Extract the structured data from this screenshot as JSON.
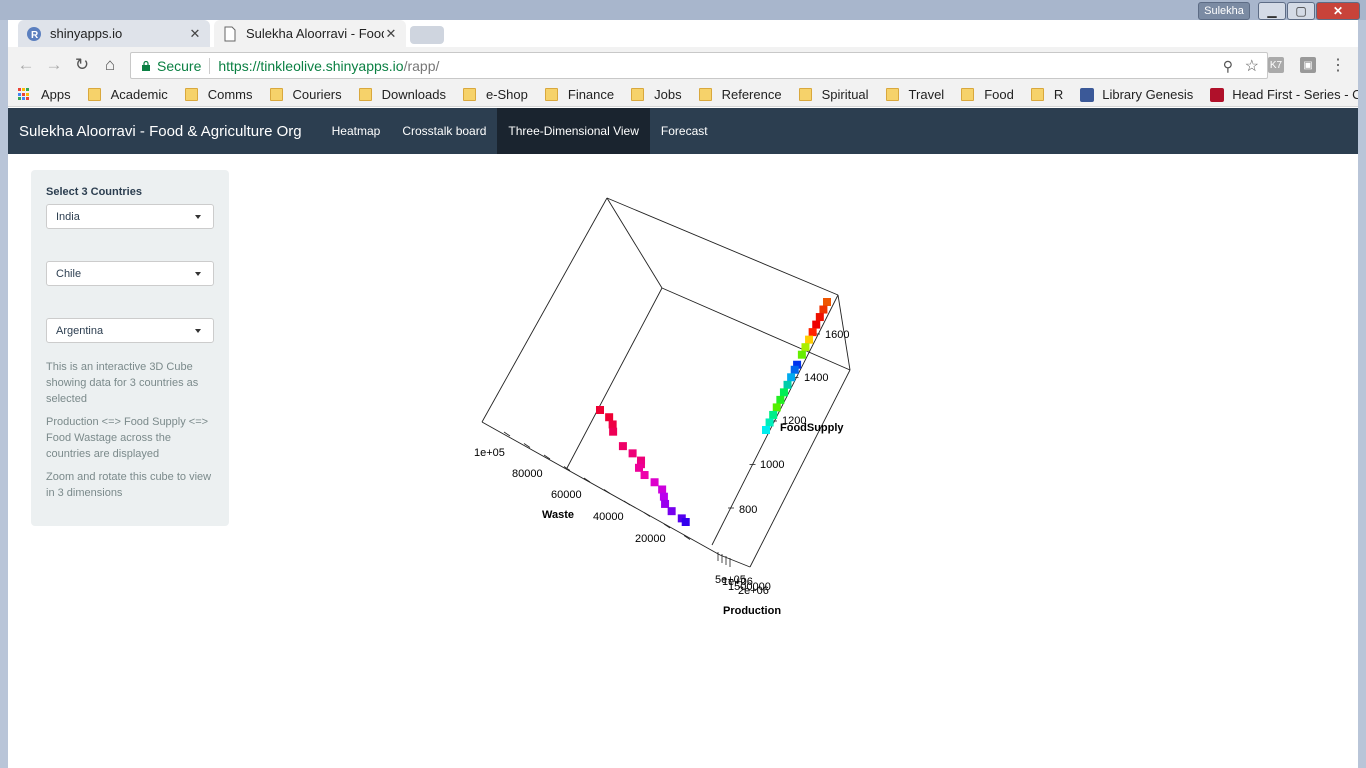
{
  "window": {
    "user": "Sulekha",
    "tabs": [
      {
        "title": "shinyapps.io"
      },
      {
        "title": "Sulekha Aloorravi - Food"
      }
    ]
  },
  "toolbar": {
    "secure_label": "Secure",
    "url_host": "https://tinkleolive.shinyapps.io",
    "url_path": "/rapp/"
  },
  "bookmarks": [
    "Apps",
    "Academic",
    "Comms",
    "Couriers",
    "Downloads",
    "e-Shop",
    "Finance",
    "Jobs",
    "Reference",
    "Spiritual",
    "Travel",
    "Food",
    "R",
    "Library Genesis",
    "Head First - Series - C"
  ],
  "navbar": {
    "brand": "Sulekha Aloorravi - Food & Agriculture Org",
    "tabs": [
      "Heatmap",
      "Crosstalk board",
      "Three-Dimensional View",
      "Forecast"
    ],
    "active_tab": "Three-Dimensional View"
  },
  "sidebar": {
    "label": "Select 3 Countries",
    "selected_countries": [
      "India",
      "Chile",
      "Argentina"
    ],
    "help": [
      "This is an interactive 3D Cube showing data for 3 countries as selected",
      "Production <=> Food Supply <=> Food Wastage across the countries are displayed",
      "Zoom and rotate this cube to view in 3 dimensions"
    ]
  },
  "colors": {
    "navbar": "#2c3e50",
    "navbar_active": "#1a242f",
    "sidebar": "#ecf0f1",
    "secure_green": "#0b8043"
  },
  "chart_data": {
    "type": "scatter",
    "axes": {
      "waste": {
        "label": "Waste",
        "ticks": [
          "1e+05",
          "80000",
          "60000",
          "40000",
          "20000"
        ]
      },
      "food_supply": {
        "label": "FoodSupply",
        "ticks": [
          "1600",
          "1400",
          "1200",
          "1000",
          "800"
        ]
      },
      "production": {
        "label": "Production",
        "ticks": [
          "5e+05",
          "1e+06",
          "1500000",
          "2e+06"
        ]
      }
    },
    "series": [
      {
        "points": [
          {
            "waste": 100000,
            "color": "#ee0033"
          },
          {
            "waste": 96000,
            "color": "#ee0033"
          },
          {
            "waste": 92000,
            "color": "#ee0044"
          },
          {
            "waste": 88000,
            "color": "#ee0055"
          },
          {
            "waste": 80000,
            "color": "#ee0066"
          },
          {
            "waste": 76000,
            "color": "#ee0077"
          },
          {
            "waste": 72000,
            "color": "#ee0077"
          },
          {
            "waste": 70000,
            "color": "#ee0088"
          },
          {
            "waste": 68000,
            "color": "#ee0099"
          },
          {
            "waste": 64000,
            "color": "#ee00aa"
          },
          {
            "waste": 60000,
            "color": "#dd00cc"
          },
          {
            "waste": 56000,
            "color": "#cc00dd"
          },
          {
            "waste": 52000,
            "color": "#bb00ee"
          },
          {
            "waste": 48000,
            "color": "#9900ee"
          },
          {
            "waste": 44000,
            "color": "#7700ee"
          },
          {
            "waste": 40000,
            "color": "#5500ee"
          },
          {
            "waste": 38000,
            "color": "#3300ee"
          }
        ]
      },
      {
        "points": [
          {
            "food_supply": 1650,
            "color": "#ee5500"
          },
          {
            "food_supply": 1620,
            "color": "#ee3300"
          },
          {
            "food_supply": 1590,
            "color": "#ee1100"
          },
          {
            "food_supply": 1560,
            "color": "#ee0000"
          },
          {
            "food_supply": 1530,
            "color": "#ff2200"
          },
          {
            "food_supply": 1500,
            "color": "#ffcc00"
          },
          {
            "food_supply": 1470,
            "color": "#aaee00"
          },
          {
            "food_supply": 1440,
            "color": "#66ee00"
          },
          {
            "food_supply": 1400,
            "color": "#0033ee"
          },
          {
            "food_supply": 1380,
            "color": "#0066ee"
          },
          {
            "food_supply": 1350,
            "color": "#00aaee"
          },
          {
            "food_supply": 1320,
            "color": "#00ccaa"
          },
          {
            "food_supply": 1290,
            "color": "#00ee55"
          },
          {
            "food_supply": 1260,
            "color": "#22ee22"
          },
          {
            "food_supply": 1230,
            "color": "#55ee00"
          },
          {
            "food_supply": 1200,
            "color": "#00ee88"
          },
          {
            "food_supply": 1170,
            "color": "#00eebb"
          },
          {
            "food_supply": 1140,
            "color": "#00eeee"
          }
        ]
      }
    ]
  }
}
